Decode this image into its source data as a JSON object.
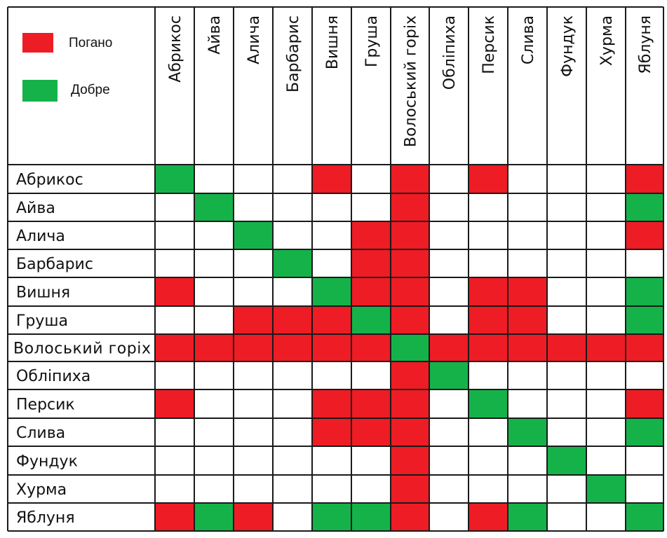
{
  "chart_data": {
    "type": "heatmap",
    "columns": [
      "Абрикос",
      "Айва",
      "Алича",
      "Барбарис",
      "Вишня",
      "Груша",
      "Волоський горіх",
      "Обліпиха",
      "Персик",
      "Слива",
      "Фундук",
      "Хурма",
      "Яблуня"
    ],
    "rows": [
      "Абрикос",
      "Айва",
      "Алича",
      "Барбарис",
      "Вишня",
      "Груша",
      "Волоський горіх",
      "Обліпиха",
      "Персик",
      "Слива",
      "Фундук",
      "Хурма",
      "Яблуня"
    ],
    "legend": [
      {
        "label": "Погано",
        "value": "bad",
        "color": "#ee1c24"
      },
      {
        "label": "Добре",
        "value": "good",
        "color": "#15b24a"
      }
    ],
    "values": [
      [
        "good",
        "",
        "",
        "",
        "bad",
        "",
        "bad",
        "",
        "bad",
        "",
        "",
        "",
        "bad"
      ],
      [
        "",
        "good",
        "",
        "",
        "",
        "",
        "bad",
        "",
        "",
        "",
        "",
        "",
        "good"
      ],
      [
        "",
        "",
        "good",
        "",
        "",
        "bad",
        "bad",
        "",
        "",
        "",
        "",
        "",
        "bad"
      ],
      [
        "",
        "",
        "",
        "good",
        "",
        "bad",
        "bad",
        "",
        "",
        "",
        "",
        "",
        ""
      ],
      [
        "bad",
        "",
        "",
        "",
        "good",
        "bad",
        "bad",
        "",
        "bad",
        "bad",
        "",
        "",
        "good"
      ],
      [
        "",
        "",
        "bad",
        "bad",
        "bad",
        "good",
        "bad",
        "",
        "bad",
        "bad",
        "",
        "",
        "good"
      ],
      [
        "bad",
        "bad",
        "bad",
        "bad",
        "bad",
        "bad",
        "good",
        "bad",
        "bad",
        "bad",
        "bad",
        "bad",
        "bad"
      ],
      [
        "",
        "",
        "",
        "",
        "",
        "",
        "bad",
        "good",
        "",
        "",
        "",
        "",
        ""
      ],
      [
        "bad",
        "",
        "",
        "",
        "bad",
        "bad",
        "bad",
        "",
        "good",
        "",
        "",
        "",
        "bad"
      ],
      [
        "",
        "",
        "",
        "",
        "bad",
        "bad",
        "bad",
        "",
        "",
        "good",
        "",
        "",
        "good"
      ],
      [
        "",
        "",
        "",
        "",
        "",
        "",
        "bad",
        "",
        "",
        "",
        "good",
        "",
        ""
      ],
      [
        "",
        "",
        "",
        "",
        "",
        "",
        "bad",
        "",
        "",
        "",
        "",
        "good",
        ""
      ],
      [
        "bad",
        "good",
        "bad",
        "",
        "good",
        "good",
        "bad",
        "",
        "bad",
        "good",
        "",
        "",
        "good"
      ]
    ]
  }
}
